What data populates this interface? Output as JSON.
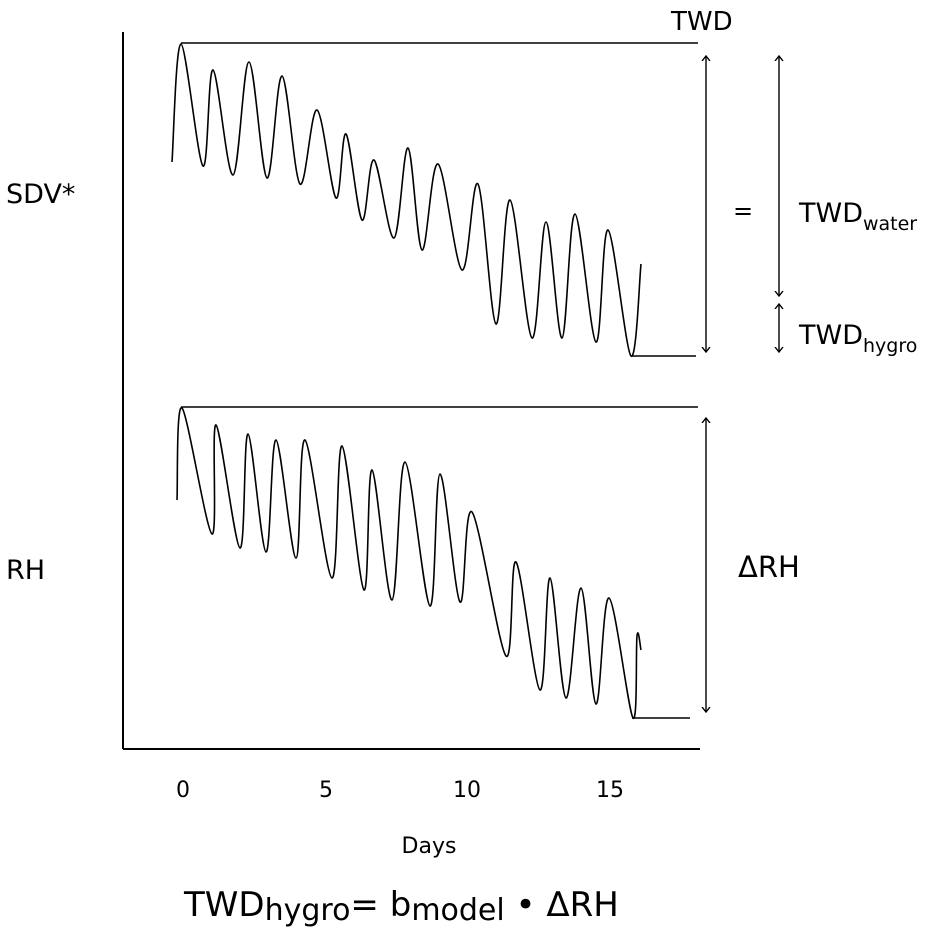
{
  "labels": {
    "sdv": "SDV*",
    "rh": "RH",
    "twd_top": "TWD",
    "equals": "=",
    "twd_water_base": "TWD",
    "twd_water_sub": "water",
    "twd_hygro_base": "TWD",
    "twd_hygro_sub": "hygro",
    "delta_rh": "ΔRH",
    "xlabel": "Days"
  },
  "x_ticks": [
    "0",
    "5",
    "10",
    "15"
  ],
  "equation": {
    "part1": "TWD",
    "sub1": "hygro",
    "part2": "= b",
    "sub2": "model",
    "part3": " • ΔRH"
  }
}
